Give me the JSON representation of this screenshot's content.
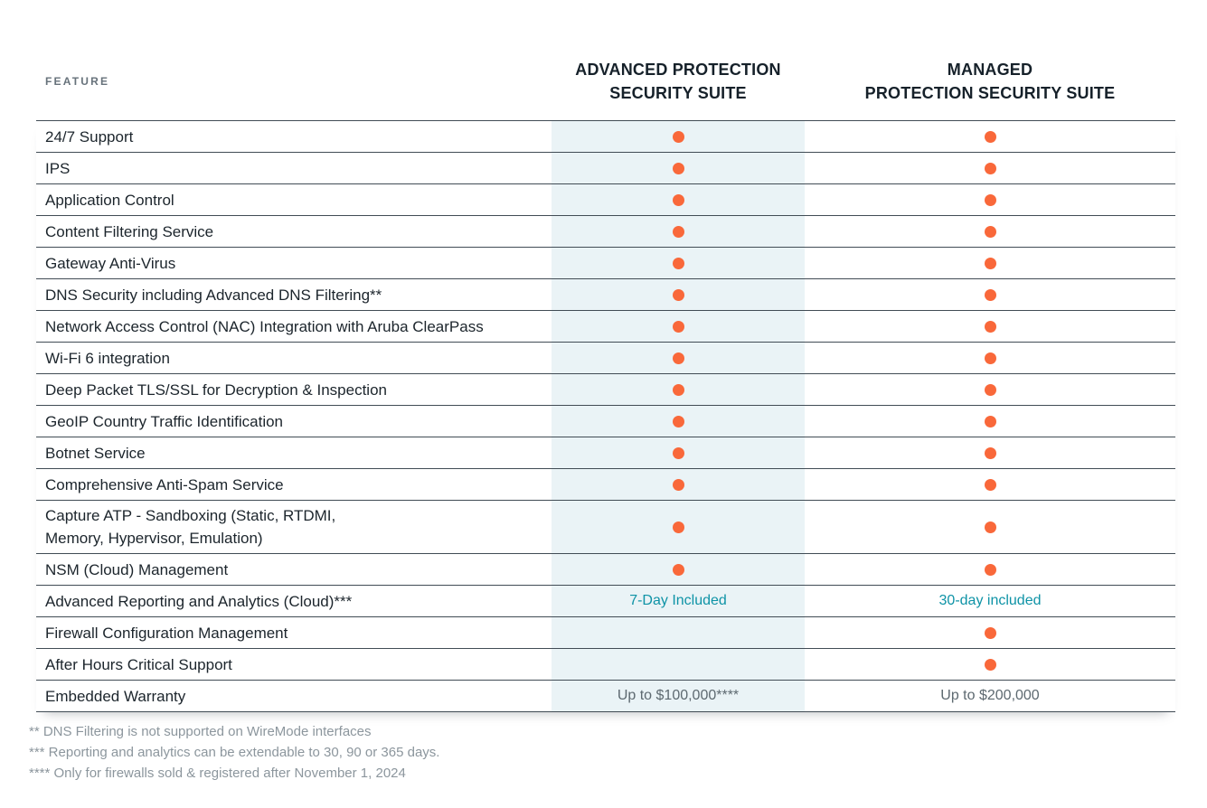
{
  "colors": {
    "accent_orange": "#F9683A",
    "accent_teal": "#0E93A6",
    "highlight_blue": "#EAF3F6",
    "border": "#414C55",
    "text_dark": "#1C252C",
    "header_navy": "#16212A",
    "label_gray": "#67727B",
    "muted_gray": "#5D6970",
    "footnote_gray": "#8C969D"
  },
  "icons": {
    "included_dot": "filled-circle"
  },
  "header": {
    "feature_label": "FEATURE",
    "columns": [
      {
        "title": "ADVANCED PROTECTION\nSECURITY SUITE"
      },
      {
        "title": "MANAGED\nPROTECTION SECURITY SUITE"
      }
    ]
  },
  "rows": [
    {
      "feature": "24/7 Support",
      "advanced": {
        "type": "dot"
      },
      "managed": {
        "type": "dot"
      }
    },
    {
      "feature": "IPS",
      "advanced": {
        "type": "dot"
      },
      "managed": {
        "type": "dot"
      }
    },
    {
      "feature": "Application Control",
      "advanced": {
        "type": "dot"
      },
      "managed": {
        "type": "dot"
      }
    },
    {
      "feature": "Content Filtering Service",
      "advanced": {
        "type": "dot"
      },
      "managed": {
        "type": "dot"
      }
    },
    {
      "feature": "Gateway Anti-Virus",
      "advanced": {
        "type": "dot"
      },
      "managed": {
        "type": "dot"
      }
    },
    {
      "feature": "DNS Security including Advanced DNS Filtering**",
      "advanced": {
        "type": "dot"
      },
      "managed": {
        "type": "dot"
      }
    },
    {
      "feature": "Network Access Control (NAC) Integration with Aruba ClearPass",
      "advanced": {
        "type": "dot"
      },
      "managed": {
        "type": "dot"
      }
    },
    {
      "feature": "Wi-Fi 6 integration",
      "advanced": {
        "type": "dot"
      },
      "managed": {
        "type": "dot"
      }
    },
    {
      "feature": "Deep Packet TLS/SSL for Decryption & Inspection",
      "advanced": {
        "type": "dot"
      },
      "managed": {
        "type": "dot"
      }
    },
    {
      "feature": "GeoIP Country Traffic Identification",
      "advanced": {
        "type": "dot"
      },
      "managed": {
        "type": "dot"
      }
    },
    {
      "feature": "Botnet Service",
      "advanced": {
        "type": "dot"
      },
      "managed": {
        "type": "dot"
      }
    },
    {
      "feature": "Comprehensive Anti-Spam Service",
      "advanced": {
        "type": "dot"
      },
      "managed": {
        "type": "dot"
      }
    },
    {
      "feature": "Capture ATP -  Sandboxing (Static, RTDMI,\nMemory, Hypervisor, Emulation)",
      "advanced": {
        "type": "dot"
      },
      "managed": {
        "type": "dot"
      }
    },
    {
      "feature": "NSM (Cloud) Management",
      "advanced": {
        "type": "dot"
      },
      "managed": {
        "type": "dot"
      }
    },
    {
      "feature": "Advanced Reporting and Analytics (Cloud)***",
      "advanced": {
        "type": "text",
        "value": "7-Day Included",
        "style": "teal"
      },
      "managed": {
        "type": "text",
        "value": "30-day included",
        "style": "teal"
      }
    },
    {
      "feature": "Firewall Configuration Management",
      "advanced": {
        "type": "empty"
      },
      "managed": {
        "type": "dot"
      }
    },
    {
      "feature": "After Hours Critical Support",
      "advanced": {
        "type": "empty"
      },
      "managed": {
        "type": "dot"
      }
    },
    {
      "feature": "Embedded Warranty",
      "advanced": {
        "type": "text",
        "value": "Up to $100,000****",
        "style": "gray"
      },
      "managed": {
        "type": "text",
        "value": "Up to $200,000",
        "style": "gray"
      }
    }
  ],
  "footnotes": [
    "** DNS Filtering is not supported on WireMode interfaces",
    "*** Reporting and analytics can be extendable to 30, 90 or 365 days.",
    "**** Only for firewalls sold & registered after November 1, 2024"
  ]
}
